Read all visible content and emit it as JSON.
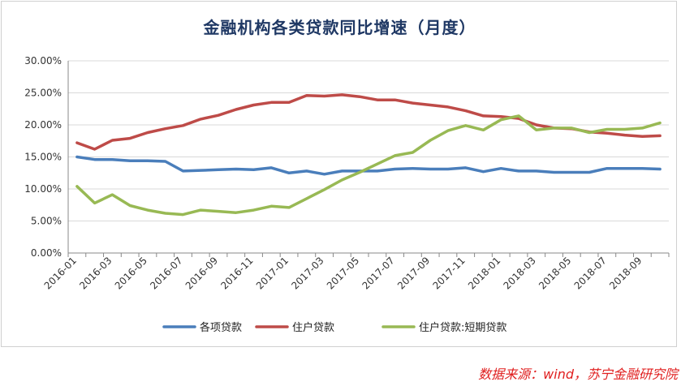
{
  "chart_data": {
    "type": "line",
    "title": "金融机构各类贷款同比增速（月度）",
    "ylim": [
      0,
      30
    ],
    "y_ticks": [
      "0.00%",
      "5.00%",
      "10.00%",
      "15.00%",
      "20.00%",
      "25.00%",
      "30.00%"
    ],
    "x": [
      "2016-01",
      "2016-02",
      "2016-03",
      "2016-04",
      "2016-05",
      "2016-06",
      "2016-07",
      "2016-08",
      "2016-09",
      "2016-10",
      "2016-11",
      "2016-12",
      "2017-01",
      "2017-02",
      "2017-03",
      "2017-04",
      "2017-05",
      "2017-06",
      "2017-07",
      "2017-08",
      "2017-09",
      "2017-10",
      "2017-11",
      "2017-12",
      "2018-01",
      "2018-02",
      "2018-03",
      "2018-04",
      "2018-05",
      "2018-06",
      "2018-07",
      "2018-08",
      "2018-09",
      "2018-10"
    ],
    "x_tick_labels": [
      "2016-01",
      "2016-03",
      "2016-05",
      "2016-07",
      "2016-09",
      "2016-11",
      "2017-01",
      "2017-03",
      "2017-05",
      "2017-07",
      "2017-09",
      "2017-11",
      "2018-01",
      "2018-03",
      "2018-05",
      "2018-07",
      "2018-09"
    ],
    "grid": true,
    "legend_position": "bottom",
    "series": [
      {
        "name": "各项贷款",
        "color": "#4a7ebb",
        "values": [
          15.0,
          14.6,
          14.6,
          14.4,
          14.4,
          14.3,
          12.8,
          12.9,
          13.0,
          13.1,
          13.0,
          13.3,
          12.5,
          12.8,
          12.3,
          12.8,
          12.8,
          12.8,
          13.1,
          13.2,
          13.1,
          13.1,
          13.3,
          12.7,
          13.2,
          12.8,
          12.8,
          12.6,
          12.6,
          12.6,
          13.2,
          13.2,
          13.2,
          13.1
        ]
      },
      {
        "name": "住户贷款",
        "color": "#be4b48",
        "values": [
          17.2,
          16.2,
          17.6,
          17.9,
          18.8,
          19.4,
          19.9,
          20.9,
          21.5,
          22.4,
          23.1,
          23.5,
          23.5,
          24.6,
          24.5,
          24.7,
          24.4,
          23.9,
          23.9,
          23.4,
          23.1,
          22.8,
          22.2,
          21.4,
          21.3,
          21.0,
          20.0,
          19.5,
          19.4,
          18.9,
          18.7,
          18.4,
          18.2,
          18.3
        ]
      },
      {
        "name": "住户贷款:短期贷款",
        "color": "#98b954",
        "values": [
          10.4,
          7.8,
          9.1,
          7.4,
          6.7,
          6.2,
          6.0,
          6.7,
          6.5,
          6.3,
          6.7,
          7.3,
          7.1,
          8.5,
          9.9,
          11.4,
          12.6,
          13.9,
          15.2,
          15.7,
          17.6,
          19.1,
          19.9,
          19.2,
          20.8,
          21.4,
          19.2,
          19.5,
          19.5,
          18.8,
          19.3,
          19.3,
          19.5,
          20.3
        ]
      }
    ]
  },
  "source_note": "数据来源：wind，苏宁金融研究院"
}
